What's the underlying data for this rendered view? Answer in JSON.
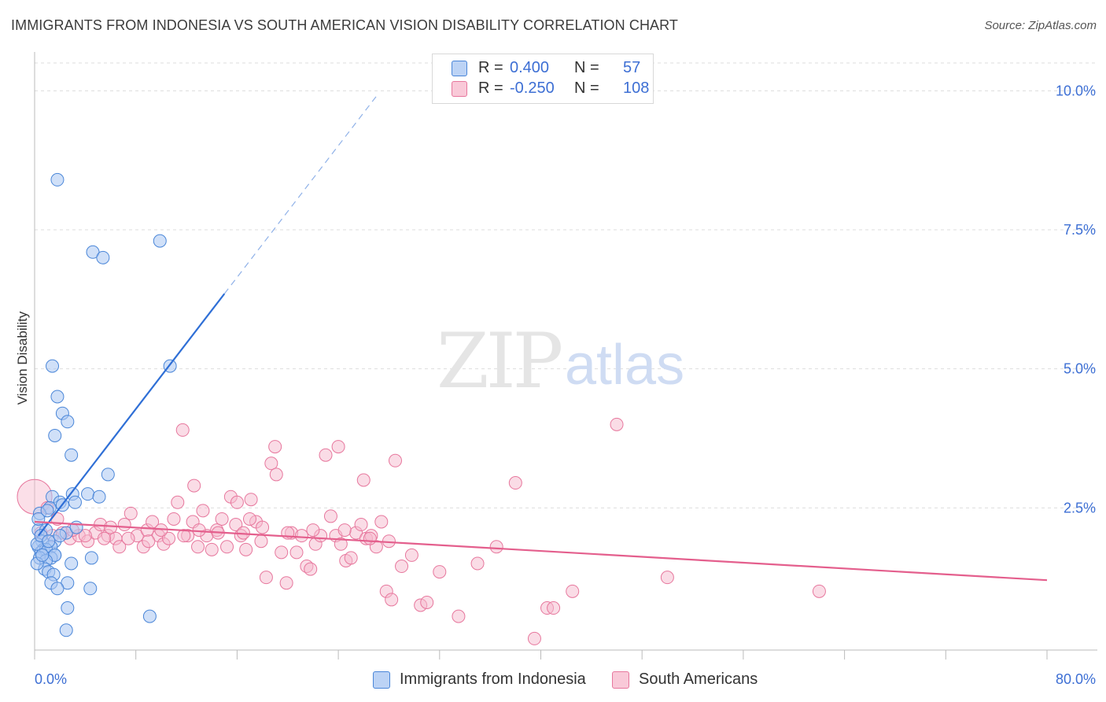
{
  "title": "IMMIGRANTS FROM INDONESIA VS SOUTH AMERICAN VISION DISABILITY CORRELATION CHART",
  "source": "Source: ZipAtlas.com",
  "watermark": {
    "zip": "ZIP",
    "atlas": "atlas"
  },
  "legend": {
    "rows": [
      {
        "r_label": "R =",
        "r_value": "0.400",
        "n_label": "N =",
        "n_value": "57"
      },
      {
        "r_label": "R =",
        "r_value": "-0.250",
        "n_label": "N =",
        "n_value": "108"
      }
    ]
  },
  "bottom_legend": {
    "series1": "Immigrants from Indonesia",
    "series2": "South Americans"
  },
  "colors": {
    "blue_fill": "#a9c7f2",
    "blue_stroke": "#4a86d8",
    "blue_line": "#2f6fd6",
    "pink_fill": "#f6b9cd",
    "pink_stroke": "#e7779d",
    "pink_line": "#e45f8d",
    "axis_label": "#3d6fd4",
    "grid": "#dddddd"
  },
  "chart_data": {
    "type": "scatter",
    "title": "IMMIGRANTS FROM INDONESIA VS SOUTH AMERICAN VISION DISABILITY CORRELATION CHART",
    "xlabel": "",
    "ylabel": "Vision Disability",
    "xlim": [
      0,
      80
    ],
    "ylim": [
      0,
      10.5
    ],
    "x_tick_labels": [
      "0.0%",
      "80.0%"
    ],
    "y_ticks": [
      2.5,
      5.0,
      7.5,
      10.0
    ],
    "y_tick_labels": [
      "2.5%",
      "5.0%",
      "7.5%",
      "10.0%"
    ],
    "grid": true,
    "series": [
      {
        "name": "Immigrants from Indonesia",
        "color": "#4a86d8",
        "trend": {
          "x": [
            0.3,
            15.0
          ],
          "y": [
            2.0,
            6.35
          ],
          "dashed_to": [
            27.0,
            9.9
          ]
        },
        "points": [
          [
            1.8,
            8.4
          ],
          [
            4.6,
            7.1
          ],
          [
            5.4,
            7.0
          ],
          [
            9.9,
            7.3
          ],
          [
            1.4,
            5.05
          ],
          [
            10.7,
            5.05
          ],
          [
            1.8,
            4.5
          ],
          [
            2.2,
            4.2
          ],
          [
            2.6,
            4.05
          ],
          [
            1.6,
            3.8
          ],
          [
            2.9,
            3.45
          ],
          [
            5.8,
            3.1
          ],
          [
            1.4,
            2.7
          ],
          [
            3.0,
            2.75
          ],
          [
            4.2,
            2.75
          ],
          [
            5.1,
            2.7
          ],
          [
            2.0,
            2.6
          ],
          [
            1.2,
            2.5
          ],
          [
            2.2,
            2.55
          ],
          [
            3.2,
            2.6
          ],
          [
            0.4,
            2.4
          ],
          [
            1.0,
            2.45
          ],
          [
            0.3,
            2.1
          ],
          [
            0.9,
            2.1
          ],
          [
            2.5,
            2.05
          ],
          [
            3.3,
            2.15
          ],
          [
            0.6,
            1.9
          ],
          [
            1.6,
            1.9
          ],
          [
            2.0,
            2.0
          ],
          [
            0.3,
            1.8
          ],
          [
            0.7,
            1.75
          ],
          [
            1.3,
            1.8
          ],
          [
            0.5,
            1.7
          ],
          [
            0.9,
            1.75
          ],
          [
            1.6,
            1.65
          ],
          [
            0.4,
            1.6
          ],
          [
            1.3,
            1.6
          ],
          [
            1.6,
            1.65
          ],
          [
            0.9,
            1.55
          ],
          [
            4.5,
            1.6
          ],
          [
            2.9,
            1.5
          ],
          [
            0.8,
            1.4
          ],
          [
            1.1,
            1.35
          ],
          [
            1.5,
            1.3
          ],
          [
            1.3,
            1.15
          ],
          [
            2.6,
            1.15
          ],
          [
            1.8,
            1.05
          ],
          [
            4.4,
            1.05
          ],
          [
            2.6,
            0.7
          ],
          [
            9.1,
            0.55
          ],
          [
            2.5,
            0.3
          ],
          [
            0.2,
            1.85
          ],
          [
            0.5,
            2.0
          ],
          [
            1.1,
            1.9
          ],
          [
            0.2,
            1.5
          ],
          [
            0.3,
            2.3
          ],
          [
            0.6,
            1.65
          ]
        ]
      },
      {
        "name": "South Americans",
        "color": "#e7779d",
        "trend": {
          "x": [
            0.0,
            80.0
          ],
          "y": [
            2.25,
            1.2
          ]
        },
        "points": [
          [
            0.0,
            2.7
          ],
          [
            1.0,
            2.5
          ],
          [
            1.8,
            2.3
          ],
          [
            0.5,
            2.05
          ],
          [
            1.4,
            2.0
          ],
          [
            2.2,
            2.05
          ],
          [
            2.8,
            1.95
          ],
          [
            3.5,
            2.0
          ],
          [
            4.2,
            1.9
          ],
          [
            4.8,
            2.05
          ],
          [
            5.2,
            2.2
          ],
          [
            5.8,
            2.0
          ],
          [
            6.4,
            1.95
          ],
          [
            6.7,
            1.8
          ],
          [
            7.1,
            2.2
          ],
          [
            7.6,
            2.4
          ],
          [
            8.1,
            2.0
          ],
          [
            8.6,
            1.8
          ],
          [
            8.9,
            2.1
          ],
          [
            9.3,
            2.25
          ],
          [
            9.8,
            2.0
          ],
          [
            10.2,
            1.85
          ],
          [
            10.6,
            1.95
          ],
          [
            11.0,
            2.3
          ],
          [
            11.3,
            2.6
          ],
          [
            11.7,
            3.9
          ],
          [
            12.1,
            2.0
          ],
          [
            12.5,
            2.25
          ],
          [
            12.9,
            1.8
          ],
          [
            13.3,
            2.45
          ],
          [
            13.6,
            2.0
          ],
          [
            14.0,
            1.75
          ],
          [
            14.4,
            2.1
          ],
          [
            14.8,
            2.3
          ],
          [
            15.2,
            1.8
          ],
          [
            15.5,
            2.7
          ],
          [
            15.9,
            2.2
          ],
          [
            16.3,
            2.0
          ],
          [
            16.7,
            1.75
          ],
          [
            17.1,
            2.65
          ],
          [
            17.5,
            2.25
          ],
          [
            17.9,
            1.9
          ],
          [
            18.3,
            1.25
          ],
          [
            18.7,
            3.3
          ],
          [
            19.1,
            3.1
          ],
          [
            19.5,
            1.7
          ],
          [
            19.9,
            1.15
          ],
          [
            20.3,
            2.05
          ],
          [
            20.7,
            1.7
          ],
          [
            21.1,
            2.0
          ],
          [
            21.5,
            1.45
          ],
          [
            21.8,
            1.4
          ],
          [
            22.2,
            1.85
          ],
          [
            22.6,
            2.0
          ],
          [
            23.0,
            3.45
          ],
          [
            23.4,
            2.35
          ],
          [
            23.8,
            2.0
          ],
          [
            24.2,
            1.85
          ],
          [
            24.6,
            1.55
          ],
          [
            25.0,
            1.6
          ],
          [
            25.4,
            2.05
          ],
          [
            25.8,
            2.2
          ],
          [
            26.2,
            1.95
          ],
          [
            26.6,
            2.0
          ],
          [
            27.0,
            1.8
          ],
          [
            27.4,
            2.25
          ],
          [
            27.8,
            1.0
          ],
          [
            28.2,
            0.85
          ],
          [
            29.0,
            1.45
          ],
          [
            29.8,
            1.65
          ],
          [
            30.5,
            0.75
          ],
          [
            31.0,
            0.8
          ],
          [
            32.0,
            1.35
          ],
          [
            33.5,
            0.55
          ],
          [
            35.0,
            1.5
          ],
          [
            36.5,
            1.8
          ],
          [
            38.0,
            2.95
          ],
          [
            39.5,
            0.15
          ],
          [
            40.5,
            0.7
          ],
          [
            42.5,
            1.0
          ],
          [
            46.0,
            4.0
          ],
          [
            50.0,
            1.25
          ],
          [
            62.0,
            1.0
          ],
          [
            41.0,
            0.7
          ],
          [
            19.0,
            3.6
          ],
          [
            24.0,
            3.6
          ],
          [
            26.0,
            3.0
          ],
          [
            28.5,
            3.35
          ],
          [
            12.6,
            2.9
          ],
          [
            16.0,
            2.6
          ],
          [
            3.0,
            2.1
          ],
          [
            4.0,
            2.0
          ],
          [
            5.5,
            1.95
          ],
          [
            6.0,
            2.15
          ],
          [
            7.4,
            1.95
          ],
          [
            9.0,
            1.9
          ],
          [
            10.0,
            2.1
          ],
          [
            11.8,
            2.0
          ],
          [
            13.0,
            2.1
          ],
          [
            14.5,
            2.05
          ],
          [
            16.5,
            2.05
          ],
          [
            17.0,
            2.3
          ],
          [
            18.0,
            2.15
          ],
          [
            20.0,
            2.05
          ],
          [
            22.0,
            2.1
          ],
          [
            24.5,
            2.1
          ],
          [
            26.5,
            1.95
          ],
          [
            28.0,
            1.9
          ]
        ]
      }
    ]
  }
}
